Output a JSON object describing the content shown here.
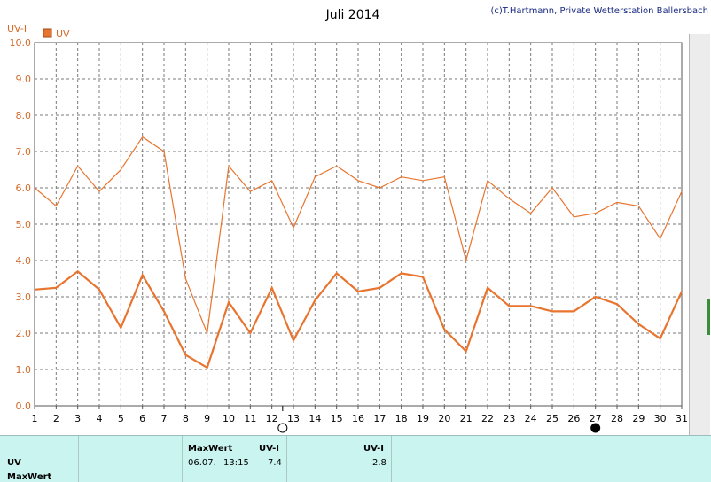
{
  "chart_data": {
    "type": "line",
    "title": "Juli 2014",
    "credit": "(c)T.Hartmann, Private Wetterstation Ballersbach",
    "ylabel": "UV-I",
    "legend": "UV",
    "ylim": [
      0,
      10
    ],
    "yticks": [
      "0.0",
      "1.0",
      "2.0",
      "3.0",
      "4.0",
      "5.0",
      "6.0",
      "7.0",
      "8.0",
      "9.0",
      "10.0"
    ],
    "categories": [
      "1",
      "2",
      "3",
      "4",
      "5",
      "6",
      "7",
      "8",
      "9",
      "10",
      "11",
      "12",
      "13",
      "14",
      "15",
      "16",
      "17",
      "18",
      "19",
      "20",
      "21",
      "22",
      "23",
      "24",
      "25",
      "26",
      "27",
      "28",
      "29",
      "30",
      "31"
    ],
    "series": [
      {
        "role": "max",
        "color": "#e8742e",
        "values": [
          6.0,
          5.5,
          6.6,
          5.9,
          6.5,
          7.4,
          7.0,
          3.5,
          2.0,
          6.6,
          5.9,
          6.2,
          4.9,
          6.3,
          6.6,
          6.2,
          6.0,
          6.3,
          6.2,
          6.3,
          4.0,
          6.2,
          5.7,
          5.3,
          6.0,
          5.2,
          5.3,
          5.6,
          5.5,
          4.6,
          5.9
        ]
      },
      {
        "role": "mean",
        "color": "#e8742e",
        "values": [
          3.2,
          3.25,
          3.7,
          3.2,
          2.15,
          3.6,
          2.6,
          1.4,
          1.05,
          2.85,
          2.0,
          3.25,
          1.8,
          2.9,
          3.65,
          3.15,
          3.25,
          3.65,
          3.55,
          2.1,
          1.5,
          3.25,
          2.75,
          2.75,
          2.6,
          2.6,
          3.0,
          2.8,
          2.25,
          1.85,
          3.15
        ]
      }
    ],
    "markers": {
      "open_circle_day": 12.5,
      "filled_circle_day": 27
    },
    "grid": true
  },
  "footer": {
    "row1_label": "UV",
    "row2_label": "MaxWert",
    "max_header": "MaxWert",
    "uvi_header": "UV-I",
    "max_date": "06.07.",
    "max_time": "13:15",
    "max_value": "7.4",
    "mean_header": "UV-I",
    "mean_value": "2.8"
  }
}
